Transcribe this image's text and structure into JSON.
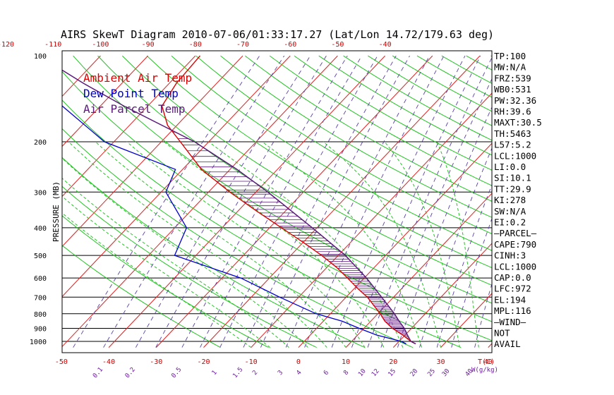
{
  "title": "AIRS SkewT Diagram 2010-07-06/01:33:17.27 (Lat/Lon 14.72/179.63 deg)",
  "colors": {
    "ambient": "#dd0000",
    "dewpoint": "#0000cc",
    "parcel": "#5a1a7a",
    "dry_adiabat": "#22c422",
    "moist_adiabat": "#22c422",
    "isotherm": "#dd2222",
    "mixing_ratio": "#5a3fa8",
    "isobar": "#000000"
  },
  "legend": [
    {
      "label": "Ambient Air Temp",
      "color": "#dd0000"
    },
    {
      "label": "Dew Point Temp",
      "color": "#0000cc"
    },
    {
      "label": "Air Parcel Temp",
      "color": "#5a1a7a"
    }
  ],
  "stats": [
    "TP:100",
    "MW:N/A",
    "FRZ:539",
    "WB0:531",
    "PW:32.36",
    "RH:39.6",
    "MAXT:30.5",
    "TH:5463",
    "L57:5.2",
    "LCL:1000",
    "LI:0.0",
    "SI:10.1",
    "TT:29.9",
    "KI:278",
    "SW:N/A",
    "EI:0.2",
    "—PARCEL—",
    "CAPE:790",
    "CINH:3",
    "LCL:1000",
    "CAP:0.0",
    "LFC:972",
    "EL:194",
    "MPL:116",
    "—WIND—",
    "NOT",
    "AVAIL"
  ],
  "chart_data": {
    "type": "line",
    "title": "AIRS SkewT Diagram 2010-07-06/01:33:17.27 (Lat/Lon 14.72/179.63 deg)",
    "ylabel": "PRESSURE (MB)",
    "xlabel": "T(C)",
    "mixing_unit": "W(g/kg)",
    "ylim": [
      1050,
      100
    ],
    "pressure_ticks": [
      100,
      200,
      300,
      400,
      500,
      600,
      700,
      800,
      900,
      1000
    ],
    "isobars": [
      200,
      300,
      400,
      500,
      600,
      700,
      800,
      900,
      1000
    ],
    "top_temp_ticks": [
      "-120",
      "-110",
      "-100",
      "-90",
      "-80",
      "-70",
      "-60",
      "-50",
      "-40"
    ],
    "bottom_temp_ticks": [
      "-50",
      "-40",
      "-30",
      "-20",
      "-10",
      "0",
      "10",
      "20",
      "30",
      "40"
    ],
    "mixing_ratio_labels": [
      "0.1",
      "0.2",
      "0.5",
      "1",
      "1.5",
      "2",
      "3",
      "4",
      "6",
      "8",
      "10",
      "12",
      "15",
      "20",
      "25",
      "30",
      "40"
    ],
    "series": [
      {
        "name": "Ambient Air Temp",
        "pressure": [
          1020,
          1000,
          950,
          900,
          850,
          800,
          700,
          650,
          600,
          550,
          500,
          450,
          400,
          350,
          300,
          250,
          200,
          175,
          150,
          125,
          100
        ],
        "temperature": [
          24.0,
          22.5,
          19.5,
          16.0,
          13.0,
          10.5,
          4.5,
          0.5,
          -3.5,
          -8.0,
          -13.5,
          -20.0,
          -27.5,
          -36.0,
          -45.5,
          -56.0,
          -66.0,
          -72.0,
          -77.0,
          -78.5,
          -79.0
        ]
      },
      {
        "name": "Dew Point Temp",
        "pressure": [
          1020,
          1000,
          950,
          900,
          850,
          800,
          700,
          600,
          500,
          400,
          300,
          250,
          200,
          150,
          125,
          100
        ],
        "dewpoint": [
          22.0,
          20.5,
          14.0,
          9.0,
          4.0,
          -3.0,
          -14.0,
          -26.0,
          -44.5,
          -47.5,
          -59.0,
          -61.5,
          -82.0,
          -98.0,
          -105.0,
          -111.0
        ]
      },
      {
        "name": "Air Parcel Temp",
        "pressure": [
          1020,
          1000,
          950,
          900,
          850,
          800,
          700,
          600,
          500,
          400,
          300,
          250,
          200,
          150,
          125,
          100
        ],
        "temperature": [
          24.0,
          22.5,
          20.5,
          18.5,
          16.0,
          13.5,
          7.5,
          0.5,
          -8.5,
          -21.0,
          -37.5,
          -48.5,
          -63.0,
          -85.0,
          -98.0,
          -113.0
        ]
      }
    ]
  }
}
